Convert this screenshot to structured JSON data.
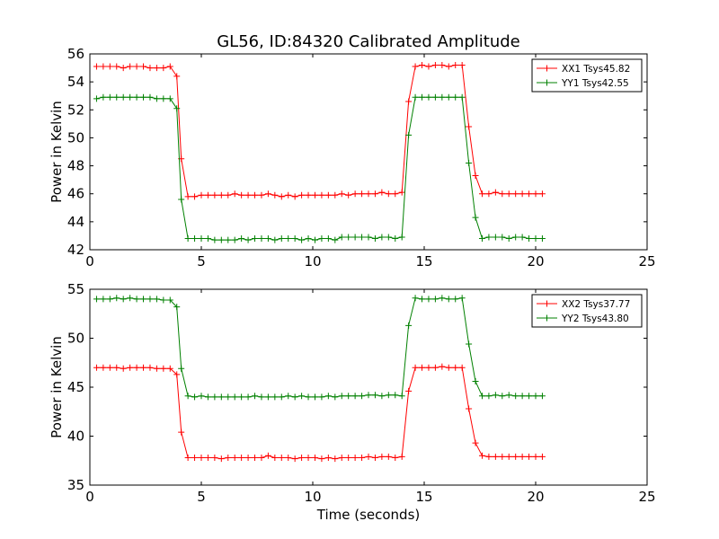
{
  "chart_data": [
    {
      "type": "line",
      "title": "GL56, ID:84320 Calibrated Amplitude",
      "xlabel": "",
      "ylabel": "Power in Kelvin",
      "xlim": [
        0,
        25
      ],
      "ylim": [
        42,
        56
      ],
      "xticks": [
        "0",
        "5",
        "10",
        "15",
        "20",
        "25"
      ],
      "yticks": [
        "42",
        "44",
        "46",
        "48",
        "50",
        "52",
        "54",
        "56"
      ],
      "legend_position": "top-right",
      "grid": false,
      "x": [
        0.3,
        0.6,
        0.9,
        1.2,
        1.5,
        1.8,
        2.1,
        2.4,
        2.7,
        3.0,
        3.3,
        3.6,
        3.9,
        4.1,
        4.4,
        4.7,
        5.0,
        5.3,
        5.6,
        5.9,
        6.2,
        6.5,
        6.8,
        7.1,
        7.4,
        7.7,
        8.0,
        8.3,
        8.6,
        8.9,
        9.2,
        9.5,
        9.8,
        10.1,
        10.4,
        10.7,
        11.0,
        11.3,
        11.6,
        11.9,
        12.2,
        12.5,
        12.8,
        13.1,
        13.4,
        13.7,
        14.0,
        14.3,
        14.6,
        14.9,
        15.2,
        15.5,
        15.8,
        16.1,
        16.4,
        16.7,
        17.0,
        17.3,
        17.6,
        17.9,
        18.2,
        18.5,
        18.8,
        19.1,
        19.4,
        19.7,
        20.0,
        20.3
      ],
      "series": [
        {
          "name": "XX1 Tsys45.82",
          "color": "#ff0000",
          "values": [
            55.1,
            55.1,
            55.1,
            55.1,
            55.0,
            55.1,
            55.1,
            55.1,
            55.0,
            55.0,
            55.0,
            55.1,
            54.4,
            48.5,
            45.8,
            45.8,
            45.9,
            45.9,
            45.9,
            45.9,
            45.9,
            46.0,
            45.9,
            45.9,
            45.9,
            45.9,
            46.0,
            45.9,
            45.8,
            45.9,
            45.8,
            45.9,
            45.9,
            45.9,
            45.9,
            45.9,
            45.9,
            46.0,
            45.9,
            46.0,
            46.0,
            46.0,
            46.0,
            46.1,
            46.0,
            46.0,
            46.1,
            52.6,
            55.1,
            55.2,
            55.1,
            55.2,
            55.2,
            55.1,
            55.2,
            55.2,
            50.8,
            47.3,
            46.0,
            46.0,
            46.1,
            46.0,
            46.0,
            46.0,
            46.0,
            46.0,
            46.0,
            46.0
          ]
        },
        {
          "name": "YY1 Tsys42.55",
          "color": "#008000",
          "values": [
            52.8,
            52.9,
            52.9,
            52.9,
            52.9,
            52.9,
            52.9,
            52.9,
            52.9,
            52.8,
            52.8,
            52.8,
            52.1,
            45.6,
            42.8,
            42.8,
            42.8,
            42.8,
            42.7,
            42.7,
            42.7,
            42.7,
            42.8,
            42.7,
            42.8,
            42.8,
            42.8,
            42.7,
            42.8,
            42.8,
            42.8,
            42.7,
            42.8,
            42.7,
            42.8,
            42.8,
            42.7,
            42.9,
            42.9,
            42.9,
            42.9,
            42.9,
            42.8,
            42.9,
            42.9,
            42.8,
            42.9,
            50.2,
            52.9,
            52.9,
            52.9,
            52.9,
            52.9,
            52.9,
            52.9,
            52.9,
            48.2,
            44.3,
            42.8,
            42.9,
            42.9,
            42.9,
            42.8,
            42.9,
            42.9,
            42.8,
            42.8,
            42.8
          ]
        }
      ]
    },
    {
      "type": "line",
      "title": "",
      "xlabel": "Time (seconds)",
      "ylabel": "Power in Kelvin",
      "xlim": [
        0,
        25
      ],
      "ylim": [
        35,
        55
      ],
      "xticks": [
        "0",
        "5",
        "10",
        "15",
        "20",
        "25"
      ],
      "yticks": [
        "35",
        "40",
        "45",
        "50",
        "55"
      ],
      "legend_position": "top-right",
      "grid": false,
      "x": [
        0.3,
        0.6,
        0.9,
        1.2,
        1.5,
        1.8,
        2.1,
        2.4,
        2.7,
        3.0,
        3.3,
        3.6,
        3.9,
        4.1,
        4.4,
        4.7,
        5.0,
        5.3,
        5.6,
        5.9,
        6.2,
        6.5,
        6.8,
        7.1,
        7.4,
        7.7,
        8.0,
        8.3,
        8.6,
        8.9,
        9.2,
        9.5,
        9.8,
        10.1,
        10.4,
        10.7,
        11.0,
        11.3,
        11.6,
        11.9,
        12.2,
        12.5,
        12.8,
        13.1,
        13.4,
        13.7,
        14.0,
        14.3,
        14.6,
        14.9,
        15.2,
        15.5,
        15.8,
        16.1,
        16.4,
        16.7,
        17.0,
        17.3,
        17.6,
        17.9,
        18.2,
        18.5,
        18.8,
        19.1,
        19.4,
        19.7,
        20.0,
        20.3
      ],
      "series": [
        {
          "name": "XX2 Tsys37.77",
          "color": "#ff0000",
          "values": [
            47.0,
            47.0,
            47.0,
            47.0,
            46.9,
            47.0,
            47.0,
            47.0,
            47.0,
            46.9,
            46.9,
            46.9,
            46.3,
            40.4,
            37.8,
            37.8,
            37.8,
            37.8,
            37.8,
            37.7,
            37.8,
            37.8,
            37.8,
            37.8,
            37.8,
            37.8,
            38.0,
            37.8,
            37.8,
            37.8,
            37.7,
            37.8,
            37.8,
            37.8,
            37.7,
            37.8,
            37.7,
            37.8,
            37.8,
            37.8,
            37.8,
            37.9,
            37.8,
            37.9,
            37.9,
            37.8,
            37.9,
            44.6,
            47.0,
            47.0,
            47.0,
            47.0,
            47.1,
            47.0,
            47.0,
            47.0,
            42.8,
            39.3,
            38.0,
            37.9,
            37.9,
            37.9,
            37.9,
            37.9,
            37.9,
            37.9,
            37.9,
            37.9
          ]
        },
        {
          "name": "YY2 Tsys43.80",
          "color": "#008000",
          "values": [
            54.0,
            54.0,
            54.0,
            54.1,
            54.0,
            54.1,
            54.0,
            54.0,
            54.0,
            54.0,
            53.9,
            53.9,
            53.2,
            46.9,
            44.1,
            44.0,
            44.1,
            44.0,
            44.0,
            44.0,
            44.0,
            44.0,
            44.0,
            44.0,
            44.1,
            44.0,
            44.0,
            44.0,
            44.0,
            44.1,
            44.0,
            44.1,
            44.0,
            44.0,
            44.0,
            44.1,
            44.0,
            44.1,
            44.1,
            44.1,
            44.1,
            44.2,
            44.2,
            44.1,
            44.2,
            44.2,
            44.1,
            51.3,
            54.1,
            54.0,
            54.0,
            54.0,
            54.1,
            54.0,
            54.0,
            54.1,
            49.4,
            45.6,
            44.1,
            44.1,
            44.2,
            44.1,
            44.2,
            44.1,
            44.1,
            44.1,
            44.1,
            44.1
          ]
        }
      ]
    }
  ]
}
